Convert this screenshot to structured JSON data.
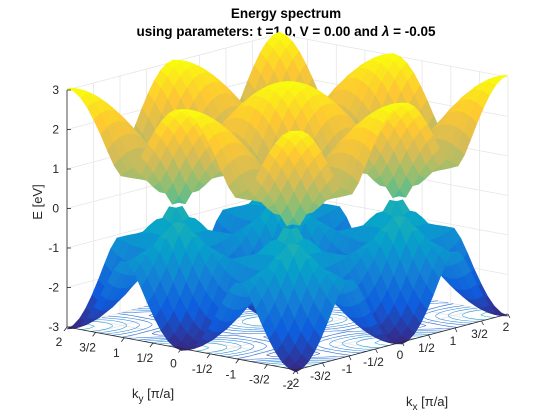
{
  "chart_data": {
    "type": "surface",
    "title": "Energy spectrum",
    "subtitle_parts": [
      "using parameters: t =1.0, V = 0.00 and ",
      "λ",
      " = -0.05"
    ],
    "zlabel": "E [eV]",
    "xlabel": {
      "main": "k",
      "sub": "x",
      "unit": " [π/a]"
    },
    "ylabel": {
      "main": "k",
      "sub": "y",
      "unit": " [π/a]"
    },
    "xlim": [
      -2,
      2
    ],
    "ylim": [
      -2,
      2
    ],
    "zlim": [
      -3,
      3
    ],
    "x_ticks": [
      -2,
      -1.5,
      -1,
      -0.5,
      0,
      0.5,
      1,
      1.5,
      2
    ],
    "x_tick_labels": [
      "-2",
      "-3/2",
      "-1",
      "-1/2",
      "0",
      "1/2",
      "1",
      "3/2",
      "2"
    ],
    "y_ticks": [
      -2,
      -1.5,
      -1,
      -0.5,
      0,
      0.5,
      1,
      1.5,
      2
    ],
    "y_tick_labels": [
      "-2",
      "-3/2",
      "-1",
      "-1/2",
      "0",
      "1/2",
      "1",
      "3/2",
      "2"
    ],
    "z_ticks": [
      -3,
      -2,
      -1,
      0,
      1,
      2,
      3
    ],
    "z_tick_labels": [
      "-3",
      "-2",
      "-1",
      "0",
      "1",
      "2",
      "3"
    ],
    "series": [
      {
        "band": "upper",
        "offset": 0.05,
        "range": [
          0.05,
          3.05
        ]
      },
      {
        "band": "lower",
        "offset": -0.05,
        "range": [
          -3.05,
          -0.05
        ]
      }
    ],
    "t": 1.0,
    "V": 0.0,
    "lambda": -0.05,
    "grid": true,
    "contour_on_floor": true,
    "colormap": "parula",
    "colors": [
      "#352a87",
      "#0f5cdd",
      "#1481d6",
      "#06a4ca",
      "#2eb7a4",
      "#87bf77",
      "#d1bb59",
      "#fec832",
      "#f9fb0e"
    ]
  }
}
